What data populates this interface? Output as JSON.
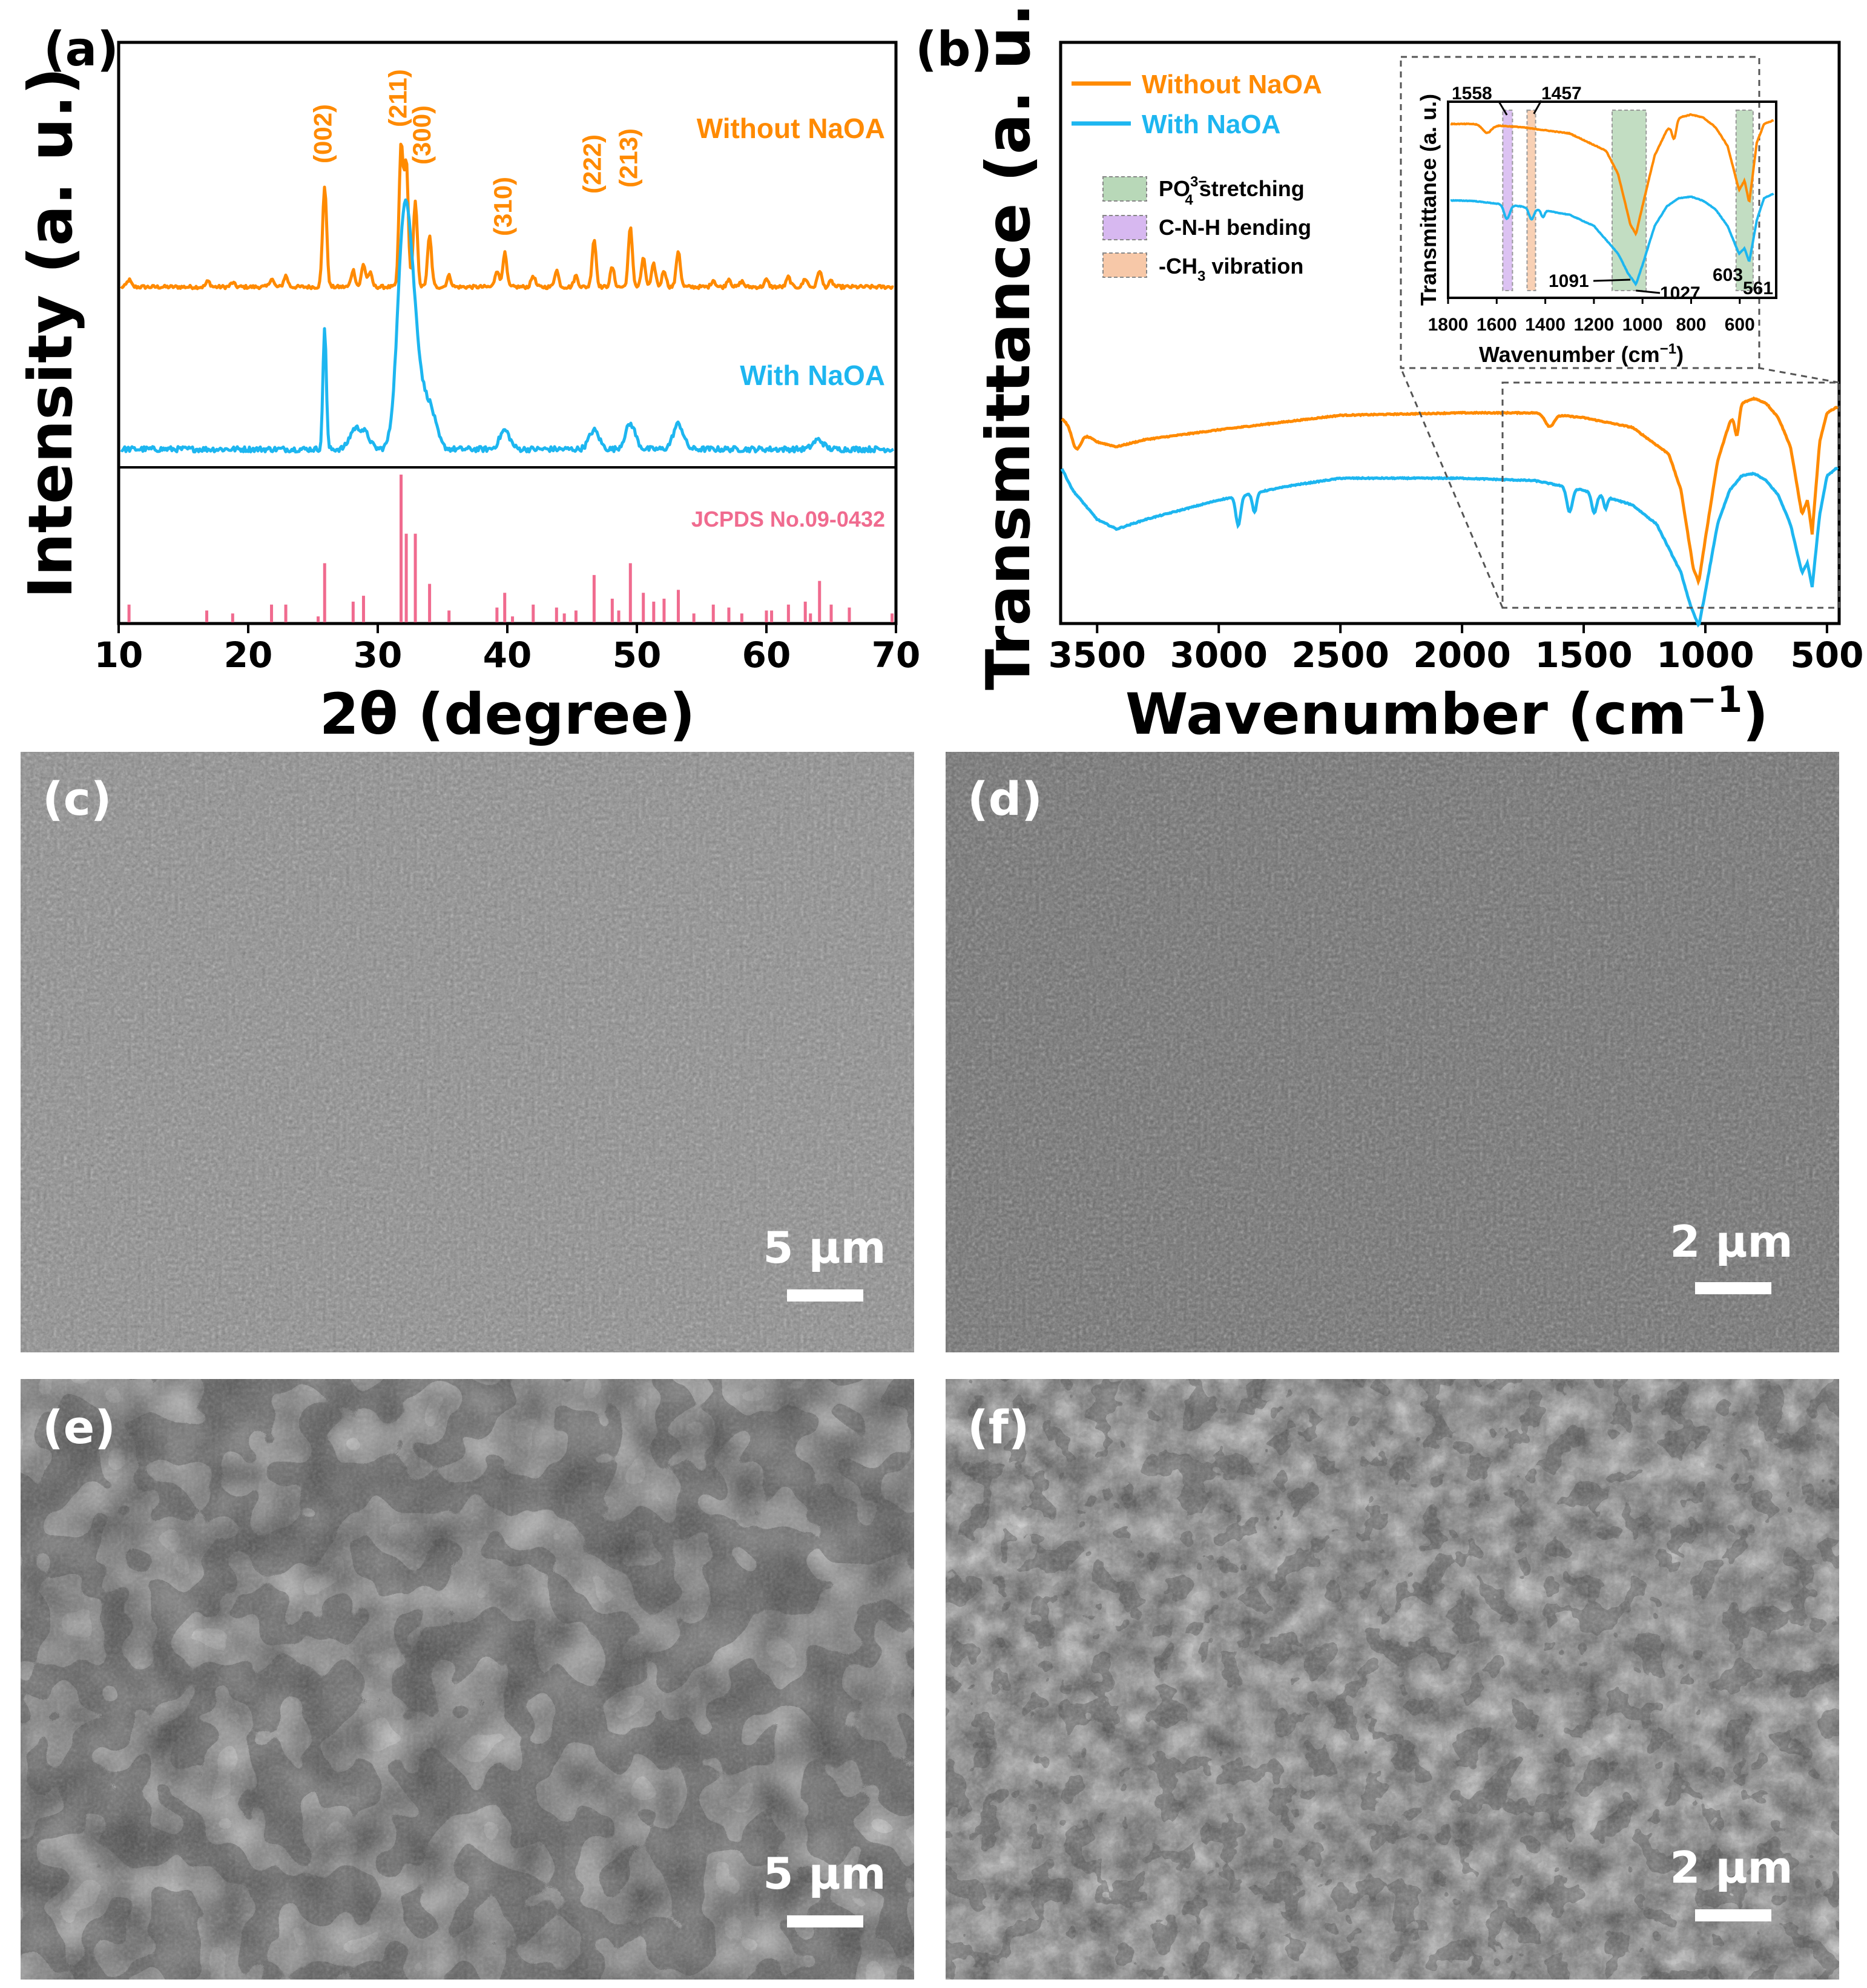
{
  "colors": {
    "orange": "#ff8a00",
    "blue": "#1db6f0",
    "pink": "#f06b8f",
    "po4_fill": "#b8d8b8",
    "cnh_fill": "#d7b8f0",
    "ch3_fill": "#f7c8a8"
  },
  "panel_a": {
    "label": "(a)",
    "ylabel": "Intensity (a. u.)",
    "xlabel": "2θ (degree)"
  },
  "panel_b": {
    "label": "(b)",
    "ylabel": "Transmittance (a. u.)",
    "xlabel_main": "Wavenumber (cm",
    "xlabel_sup": "−1",
    "xlabel_close": ")",
    "legend": [
      "Without NaOA",
      "With NaOA"
    ],
    "band_legend": {
      "po4": "PO",
      "po4_sup": "3−",
      "po4_sub": "4",
      "po4_rest": " stretching",
      "cnh": "C-N-H bending",
      "ch3_pre": "-CH",
      "ch3_sub": "3",
      "ch3_rest": " vibration"
    },
    "inset": {
      "ylabel": "Transmittance (a. u.)",
      "xlabel_main": "Wavenumber (cm",
      "xlabel_sup": "−1",
      "xlabel_close": ")"
    }
  },
  "panels_sem": {
    "c": {
      "label": "(c)",
      "scale": "5 µm"
    },
    "d": {
      "label": "(d)",
      "scale": "2 µm"
    },
    "e": {
      "label": "(e)",
      "scale": "5 µm"
    },
    "f": {
      "label": "(f)",
      "scale": "2 µm"
    }
  },
  "chart_data": [
    {
      "type": "line",
      "panel": "a",
      "xlabel": "2θ (degree)",
      "ylabel": "Intensity (a. u.)",
      "xlim": [
        10,
        70
      ],
      "xticks": [
        10,
        20,
        30,
        40,
        50,
        60,
        70
      ],
      "grid": false,
      "series": [
        {
          "name": "Without NaOA",
          "peaks": [
            [
              10.8,
              0.05
            ],
            [
              16.9,
              0.04
            ],
            [
              18.8,
              0.03
            ],
            [
              21.8,
              0.06
            ],
            [
              22.9,
              0.08
            ],
            [
              25.9,
              0.72
            ],
            [
              28.1,
              0.12
            ],
            [
              28.9,
              0.16
            ],
            [
              29.4,
              0.1
            ],
            [
              31.8,
              1.0
            ],
            [
              32.2,
              0.88
            ],
            [
              32.9,
              0.6
            ],
            [
              34.0,
              0.36
            ],
            [
              35.5,
              0.08
            ],
            [
              39.2,
              0.12
            ],
            [
              39.8,
              0.24
            ],
            [
              42.0,
              0.08
            ],
            [
              43.8,
              0.12
            ],
            [
              45.3,
              0.08
            ],
            [
              46.7,
              0.34
            ],
            [
              48.1,
              0.14
            ],
            [
              49.5,
              0.42
            ],
            [
              50.5,
              0.2
            ],
            [
              51.3,
              0.16
            ],
            [
              52.1,
              0.12
            ],
            [
              53.2,
              0.26
            ],
            [
              55.9,
              0.05
            ],
            [
              57.1,
              0.06
            ],
            [
              58.1,
              0.04
            ],
            [
              60.0,
              0.05
            ],
            [
              61.7,
              0.07
            ],
            [
              63.0,
              0.06
            ],
            [
              64.1,
              0.12
            ],
            [
              65.0,
              0.04
            ]
          ]
        },
        {
          "name": "With NaOA",
          "peaks": [
            [
              25.9,
              0.78
            ],
            [
              28.2,
              0.12
            ],
            [
              29.0,
              0.1
            ],
            [
              31.9,
              0.72
            ],
            [
              32.2,
              0.8
            ],
            [
              32.9,
              0.52
            ],
            [
              34.0,
              0.26
            ],
            [
              39.8,
              0.12
            ],
            [
              46.7,
              0.12
            ],
            [
              49.5,
              0.16
            ],
            [
              53.2,
              0.16
            ],
            [
              64.0,
              0.06
            ]
          ]
        },
        {
          "name": "JCPDS No.09-0432",
          "sticks": [
            [
              10.8,
              0.12
            ],
            [
              16.8,
              0.08
            ],
            [
              18.8,
              0.06
            ],
            [
              21.8,
              0.12
            ],
            [
              22.9,
              0.12
            ],
            [
              25.4,
              0.04
            ],
            [
              25.9,
              0.4
            ],
            [
              28.1,
              0.14
            ],
            [
              28.9,
              0.18
            ],
            [
              31.8,
              1.0
            ],
            [
              32.2,
              0.6
            ],
            [
              32.9,
              0.6
            ],
            [
              34.0,
              0.26
            ],
            [
              35.5,
              0.08
            ],
            [
              39.2,
              0.1
            ],
            [
              39.8,
              0.2
            ],
            [
              40.4,
              0.04
            ],
            [
              42.0,
              0.12
            ],
            [
              43.8,
              0.1
            ],
            [
              44.4,
              0.06
            ],
            [
              45.3,
              0.08
            ],
            [
              46.7,
              0.32
            ],
            [
              48.1,
              0.16
            ],
            [
              48.6,
              0.08
            ],
            [
              49.5,
              0.4
            ],
            [
              50.5,
              0.2
            ],
            [
              51.3,
              0.14
            ],
            [
              52.1,
              0.16
            ],
            [
              53.2,
              0.22
            ],
            [
              54.4,
              0.06
            ],
            [
              55.9,
              0.12
            ],
            [
              57.1,
              0.1
            ],
            [
              58.1,
              0.06
            ],
            [
              60.0,
              0.08
            ],
            [
              60.4,
              0.08
            ],
            [
              61.7,
              0.12
            ],
            [
              63.0,
              0.14
            ],
            [
              63.4,
              0.06
            ],
            [
              64.1,
              0.28
            ],
            [
              65.0,
              0.12
            ],
            [
              66.4,
              0.1
            ],
            [
              69.7,
              0.06
            ]
          ]
        }
      ],
      "annotations": [
        "(002)",
        "(211)",
        "(300)",
        "(310)",
        "(222)",
        "(213)",
        "Without NaOA",
        "With NaOA",
        "JCPDS No.09-0432"
      ],
      "annotation_positions": [
        25.9,
        31.8,
        32.9,
        39.8,
        46.7,
        49.5
      ]
    },
    {
      "type": "line",
      "panel": "b",
      "xlabel": "Wavenumber (cm−1)",
      "ylabel": "Transmittance (a. u.)",
      "xlim": [
        3650,
        450
      ],
      "xticks": [
        3500,
        3000,
        2500,
        2000,
        1500,
        1000,
        500
      ],
      "grid": false,
      "series": [
        {
          "name": "Without NaOA",
          "baseline": [
            [
              3650,
              0.0
            ],
            [
              3600,
              -0.04
            ],
            [
              3500,
              -0.1
            ],
            [
              3420,
              -0.12
            ],
            [
              3300,
              -0.09
            ],
            [
              3000,
              -0.05
            ],
            [
              2500,
              0.01
            ],
            [
              2000,
              0.02
            ],
            [
              1700,
              0.02
            ],
            [
              1500,
              0.0
            ],
            [
              1300,
              -0.04
            ],
            [
              1150,
              -0.15
            ],
            [
              1100,
              -0.3
            ],
            [
              1050,
              -0.62
            ],
            [
              1027,
              -0.68
            ],
            [
              1000,
              -0.5
            ],
            [
              950,
              -0.18
            ],
            [
              900,
              -0.02
            ],
            [
              850,
              0.06
            ],
            [
              800,
              0.08
            ],
            [
              750,
              0.06
            ],
            [
              700,
              0.0
            ],
            [
              650,
              -0.12
            ],
            [
              603,
              -0.4
            ],
            [
              580,
              -0.34
            ],
            [
              561,
              -0.48
            ],
            [
              530,
              -0.1
            ],
            [
              500,
              0.02
            ],
            [
              450,
              0.05
            ]
          ],
          "bands": [
            [
              3585,
              25,
              0.08
            ],
            [
              1640,
              25,
              0.05
            ],
            [
              870,
              12,
              0.1
            ]
          ]
        },
        {
          "name": "With NaOA",
          "baseline": [
            [
              3650,
              0.0
            ],
            [
              3600,
              -0.1
            ],
            [
              3500,
              -0.22
            ],
            [
              3420,
              -0.26
            ],
            [
              3300,
              -0.22
            ],
            [
              3000,
              -0.14
            ],
            [
              2700,
              -0.08
            ],
            [
              2500,
              -0.05
            ],
            [
              2000,
              -0.05
            ],
            [
              1700,
              -0.06
            ],
            [
              1600,
              -0.08
            ],
            [
              1500,
              -0.1
            ],
            [
              1300,
              -0.16
            ],
            [
              1200,
              -0.24
            ],
            [
              1100,
              -0.44
            ],
            [
              1060,
              -0.58
            ],
            [
              1027,
              -0.66
            ],
            [
              1000,
              -0.52
            ],
            [
              950,
              -0.24
            ],
            [
              900,
              -0.1
            ],
            [
              850,
              -0.04
            ],
            [
              800,
              -0.03
            ],
            [
              750,
              -0.06
            ],
            [
              700,
              -0.12
            ],
            [
              650,
              -0.24
            ],
            [
              603,
              -0.44
            ],
            [
              580,
              -0.4
            ],
            [
              561,
              -0.5
            ],
            [
              530,
              -0.2
            ],
            [
              500,
              -0.04
            ],
            [
              450,
              0.0
            ]
          ],
          "bands": [
            [
              2920,
              14,
              0.12
            ],
            [
              2853,
              12,
              0.08
            ],
            [
              1558,
              16,
              0.1
            ],
            [
              1457,
              14,
              0.08
            ],
            [
              1410,
              10,
              0.05
            ]
          ]
        }
      ],
      "annotations": [
        "1558",
        "1457",
        "1091",
        "1027",
        "603",
        "561"
      ],
      "inset": {
        "xlabel": "Wavenumber (cm−1)",
        "ylabel": "Transmittance (a. u.)",
        "xlim": [
          1800,
          450
        ],
        "xticks": [
          1800,
          1600,
          1400,
          1200,
          1000,
          800,
          600
        ],
        "shaded_bands": [
          {
            "label": "C-N-H bending",
            "x": [
              1575,
              1535
            ]
          },
          {
            "label": "-CH3 vibration",
            "x": [
              1475,
              1440
            ]
          },
          {
            "label": "PO43− stretching",
            "x": [
              1125,
              985
            ]
          },
          {
            "label": "PO43− stretching",
            "x": [
              615,
              545
            ]
          }
        ]
      }
    }
  ]
}
